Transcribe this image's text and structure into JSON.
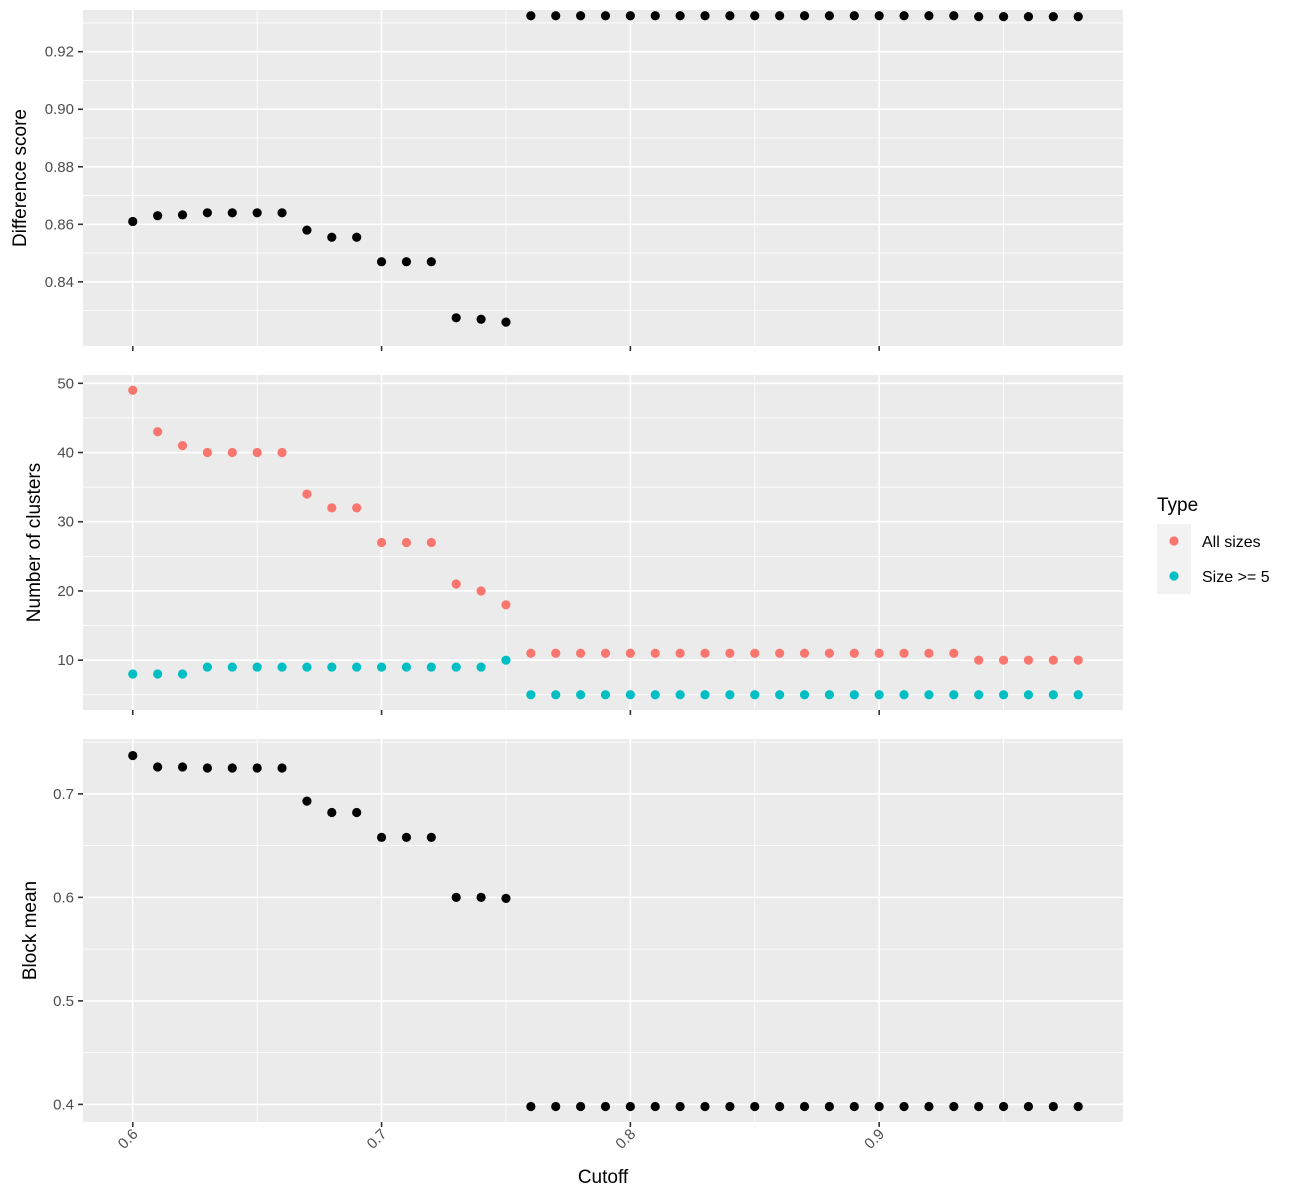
{
  "chart_data": [
    {
      "type": "scatter",
      "panel": "top",
      "ylabel": "Difference score",
      "xlabel": "Cutoff",
      "xlim": [
        0.58,
        0.998
      ],
      "ylim": [
        0.8177,
        0.9345
      ],
      "x_ticks": [
        0.6,
        0.7,
        0.8,
        0.9
      ],
      "y_ticks": [
        0.84,
        0.86,
        0.88,
        0.9,
        0.92
      ],
      "y_tick_labels": [
        "0.84",
        "0.86",
        "0.88",
        "0.90",
        "0.92"
      ],
      "grid": true,
      "series": [
        {
          "color": "#000000",
          "x": [
            0.6,
            0.61,
            0.62,
            0.63,
            0.64,
            0.65,
            0.66,
            0.67,
            0.68,
            0.69,
            0.7,
            0.71,
            0.72,
            0.73,
            0.74,
            0.75,
            0.76,
            0.77,
            0.78,
            0.79,
            0.8,
            0.81,
            0.82,
            0.83,
            0.84,
            0.85,
            0.86,
            0.87,
            0.88,
            0.89,
            0.9,
            0.91,
            0.92,
            0.93,
            0.94,
            0.95,
            0.96,
            0.97,
            0.98
          ],
          "y": [
            0.861,
            0.863,
            0.8633,
            0.864,
            0.864,
            0.864,
            0.864,
            0.858,
            0.8555,
            0.8555,
            0.847,
            0.847,
            0.847,
            0.8275,
            0.827,
            0.826,
            0.9325,
            0.9325,
            0.9325,
            0.9325,
            0.9325,
            0.9325,
            0.9325,
            0.9325,
            0.9325,
            0.9325,
            0.9325,
            0.9325,
            0.9325,
            0.9325,
            0.9325,
            0.9325,
            0.9325,
            0.9325,
            0.9322,
            0.9322,
            0.9322,
            0.9322,
            0.9322
          ]
        }
      ]
    },
    {
      "type": "scatter",
      "panel": "middle",
      "ylabel": "Number of clusters",
      "xlabel": "Cutoff",
      "xlim": [
        0.58,
        0.998
      ],
      "ylim": [
        2.8,
        51.2
      ],
      "x_ticks": [
        0.6,
        0.7,
        0.8,
        0.9
      ],
      "y_ticks": [
        10,
        20,
        30,
        40,
        50
      ],
      "y_tick_labels": [
        "10",
        "20",
        "30",
        "40",
        "50"
      ],
      "grid": true,
      "legend": {
        "title": "Type",
        "placement": "right",
        "entries": [
          "All sizes",
          "Size >= 5"
        ]
      },
      "series": [
        {
          "name": "All sizes",
          "color": "#f8766d",
          "x": [
            0.6,
            0.61,
            0.62,
            0.63,
            0.64,
            0.65,
            0.66,
            0.67,
            0.68,
            0.69,
            0.7,
            0.71,
            0.72,
            0.73,
            0.74,
            0.75,
            0.76,
            0.77,
            0.78,
            0.79,
            0.8,
            0.81,
            0.82,
            0.83,
            0.84,
            0.85,
            0.86,
            0.87,
            0.88,
            0.89,
            0.9,
            0.91,
            0.92,
            0.93,
            0.94,
            0.95,
            0.96,
            0.97,
            0.98
          ],
          "y": [
            49,
            43,
            41,
            40,
            40,
            40,
            40,
            34,
            32,
            32,
            27,
            27,
            27,
            21,
            20,
            18,
            11,
            11,
            11,
            11,
            11,
            11,
            11,
            11,
            11,
            11,
            11,
            11,
            11,
            11,
            11,
            11,
            11,
            11,
            10,
            10,
            10,
            10,
            10
          ]
        },
        {
          "name": "Size >= 5",
          "color": "#00bfc4",
          "x": [
            0.6,
            0.61,
            0.62,
            0.63,
            0.64,
            0.65,
            0.66,
            0.67,
            0.68,
            0.69,
            0.7,
            0.71,
            0.72,
            0.73,
            0.74,
            0.75,
            0.76,
            0.77,
            0.78,
            0.79,
            0.8,
            0.81,
            0.82,
            0.83,
            0.84,
            0.85,
            0.86,
            0.87,
            0.88,
            0.89,
            0.9,
            0.91,
            0.92,
            0.93,
            0.94,
            0.95,
            0.96,
            0.97,
            0.98
          ],
          "y": [
            8,
            8,
            8,
            9,
            9,
            9,
            9,
            9,
            9,
            9,
            9,
            9,
            9,
            9,
            9,
            10,
            5,
            5,
            5,
            5,
            5,
            5,
            5,
            5,
            5,
            5,
            5,
            5,
            5,
            5,
            5,
            5,
            5,
            5,
            5,
            5,
            5,
            5,
            5
          ]
        }
      ]
    },
    {
      "type": "scatter",
      "panel": "bottom",
      "ylabel": "Block mean",
      "xlabel": "Cutoff",
      "xlim": [
        0.58,
        0.998
      ],
      "ylim": [
        0.383,
        0.753
      ],
      "x_ticks": [
        0.6,
        0.7,
        0.8,
        0.9
      ],
      "x_tick_labels": [
        "0.6",
        "0.7",
        "0.8",
        "0.9"
      ],
      "y_ticks": [
        0.4,
        0.5,
        0.6,
        0.7
      ],
      "y_tick_labels": [
        "0.4",
        "0.5",
        "0.6",
        "0.7"
      ],
      "grid": true,
      "series": [
        {
          "color": "#000000",
          "x": [
            0.6,
            0.61,
            0.62,
            0.63,
            0.64,
            0.65,
            0.66,
            0.67,
            0.68,
            0.69,
            0.7,
            0.71,
            0.72,
            0.73,
            0.74,
            0.75,
            0.76,
            0.77,
            0.78,
            0.79,
            0.8,
            0.81,
            0.82,
            0.83,
            0.84,
            0.85,
            0.86,
            0.87,
            0.88,
            0.89,
            0.9,
            0.91,
            0.92,
            0.93,
            0.94,
            0.95,
            0.96,
            0.97,
            0.98
          ],
          "y": [
            0.737,
            0.726,
            0.726,
            0.725,
            0.725,
            0.725,
            0.725,
            0.693,
            0.682,
            0.682,
            0.658,
            0.658,
            0.658,
            0.6,
            0.6,
            0.599,
            0.398,
            0.398,
            0.398,
            0.398,
            0.398,
            0.398,
            0.398,
            0.398,
            0.398,
            0.398,
            0.398,
            0.398,
            0.398,
            0.398,
            0.398,
            0.398,
            0.398,
            0.398,
            0.398,
            0.398,
            0.398,
            0.398,
            0.398
          ]
        }
      ]
    }
  ],
  "x_axis_title": "Cutoff",
  "legend": {
    "title": "Type",
    "items": [
      {
        "label": "All sizes",
        "color": "#f8766d"
      },
      {
        "label": "Size >= 5",
        "color": "#00bfc4"
      }
    ]
  }
}
